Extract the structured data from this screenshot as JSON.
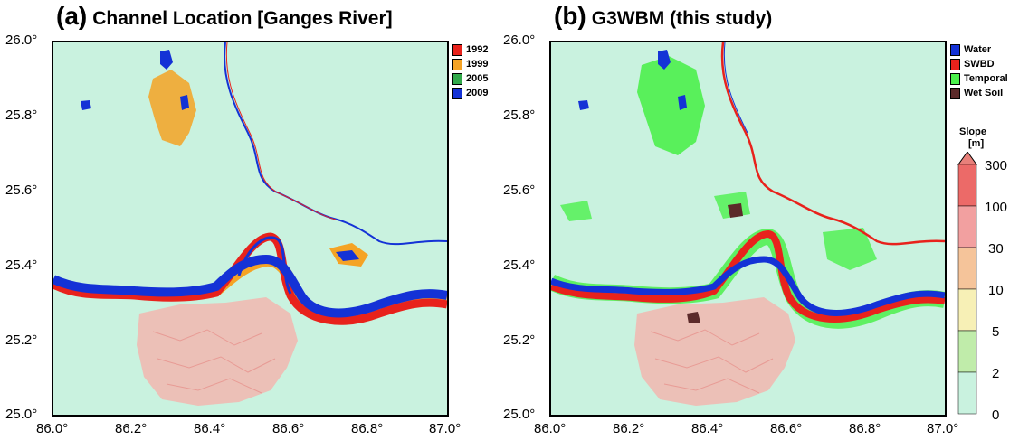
{
  "panel_a": {
    "letter": "(a)",
    "title": "Channel Location [Ganges River]",
    "legend": [
      {
        "label": "1992",
        "color": "#e8221c"
      },
      {
        "label": "1999",
        "color": "#f5a324"
      },
      {
        "label": "2005",
        "color": "#31a94a"
      },
      {
        "label": "2009",
        "color": "#1432d6"
      }
    ]
  },
  "panel_b": {
    "letter": "(b)",
    "title": "G3WBM (this study)",
    "legend": [
      {
        "label": "Water",
        "color": "#1432d6"
      },
      {
        "label": "SWBD",
        "color": "#e8221c"
      },
      {
        "label": "Temporal",
        "color": "#4cf04c"
      },
      {
        "label": "Wet Soil",
        "color": "#5c2a2a"
      }
    ]
  },
  "axes": {
    "y_ticks": [
      "26.0°",
      "25.8°",
      "25.6°",
      "25.4°",
      "25.2°",
      "25.0°"
    ],
    "x_ticks": [
      "86.0°",
      "86.2°",
      "86.4°",
      "86.6°",
      "86.8°",
      "87.0°"
    ]
  },
  "colorbar": {
    "title": "Slope",
    "unit": "[m]",
    "ticks": [
      "300",
      "100",
      "30",
      "10",
      "5",
      "2",
      "0"
    ]
  },
  "colors": {
    "background": "#c9f2df",
    "lowland_pink": "#f2b7b0"
  }
}
